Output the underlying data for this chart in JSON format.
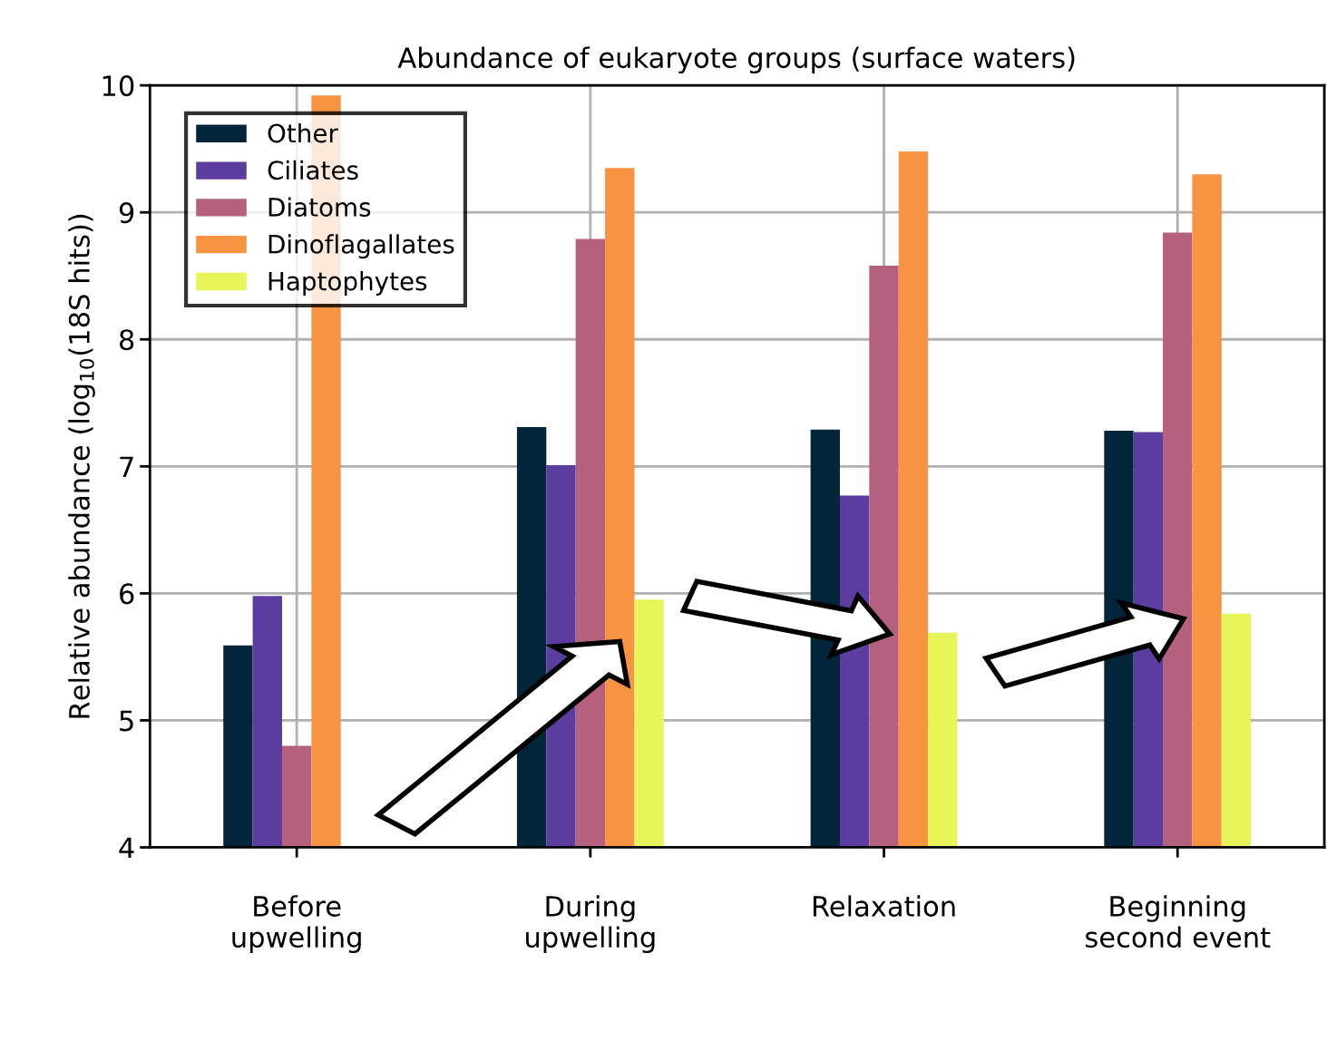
{
  "chart_data": {
    "type": "bar",
    "title": "Abundance of eukaryote groups (surface waters)",
    "ylabel": "Relative abundance (log$_{10}$(18S hits))",
    "categories": [
      "Before\nupwelling",
      "During\nupwelling",
      "Relaxation",
      "Beginning\nsecond event"
    ],
    "series": [
      {
        "name": "Other",
        "color": "#03253a",
        "values": [
          5.59,
          7.31,
          7.29,
          7.28
        ]
      },
      {
        "name": "Ciliates",
        "color": "#5a3d9e",
        "values": [
          5.98,
          7.01,
          6.77,
          7.27
        ]
      },
      {
        "name": "Diatoms",
        "color": "#b5607f",
        "values": [
          4.8,
          8.79,
          8.58,
          8.84
        ]
      },
      {
        "name": "Dinoflagallates",
        "color": "#f89441",
        "values": [
          9.92,
          9.35,
          9.48,
          9.3
        ]
      },
      {
        "name": "Haptophytes",
        "color": "#e8f55a",
        "values": [
          null,
          5.95,
          5.69,
          5.84
        ]
      }
    ],
    "ylim": [
      4,
      10
    ],
    "yticks": [
      4,
      5,
      6,
      7,
      8,
      9,
      10
    ],
    "grid": true,
    "legend": "top left"
  }
}
